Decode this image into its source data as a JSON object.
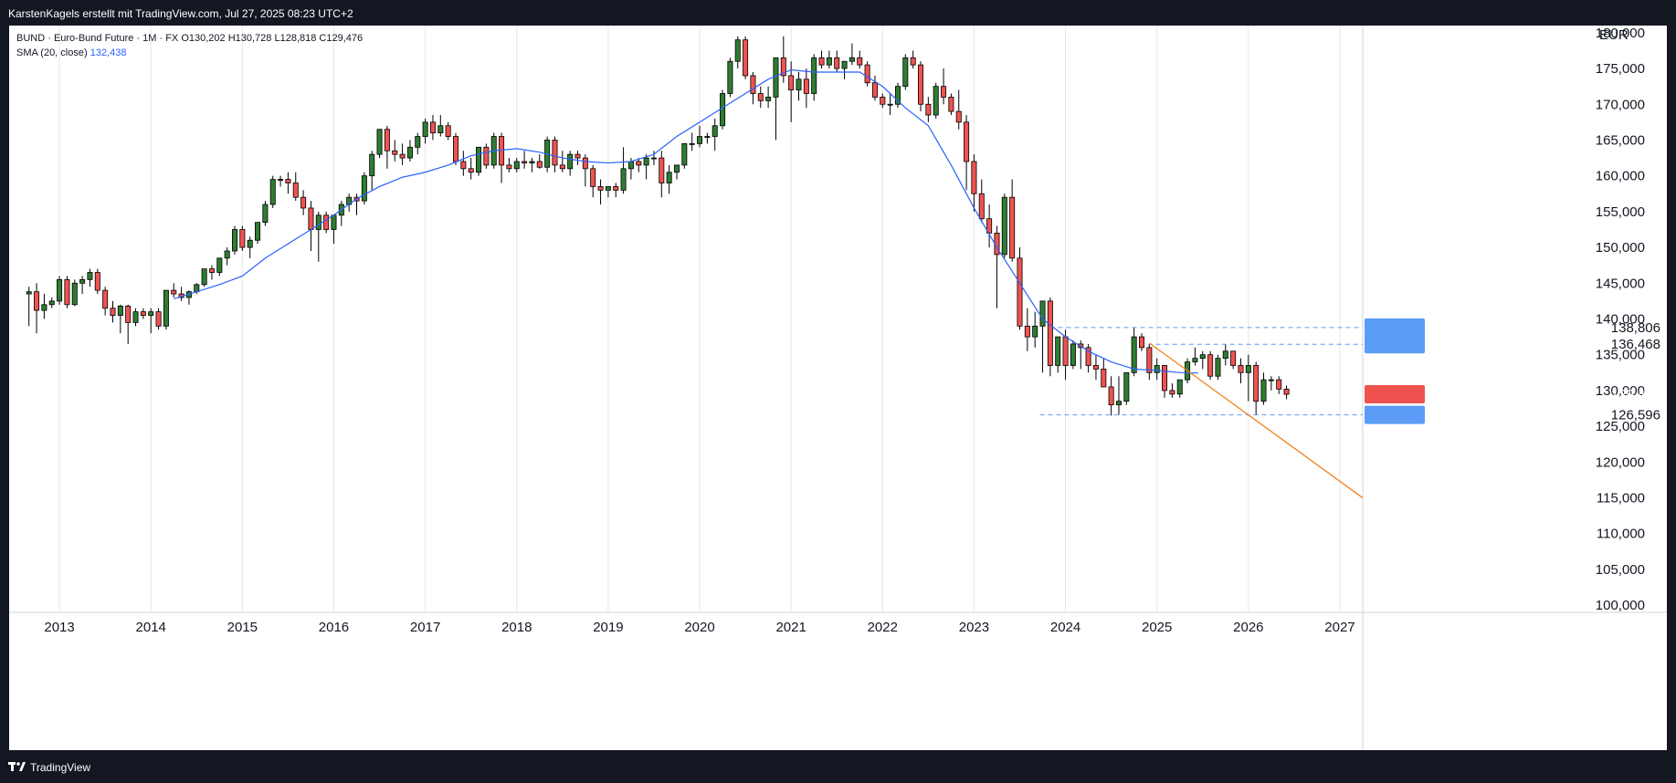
{
  "header": {
    "attribution": "KarstenKagels erstellt mit TradingView.com, Jul 27, 2025 08:23 UTC+2"
  },
  "legend": {
    "symbol_line": "BUND · Euro-Bund Future · 1M · FX  O130,202  H130,728  L128,818  C129,476",
    "sma_label": "SMA (20, close)",
    "sma_value": "132,438"
  },
  "footer": {
    "brand": "TradingView"
  },
  "chart_data": {
    "type": "candlestick",
    "currency": "EUR",
    "y_range": [
      99000,
      181000
    ],
    "y_ticks": [
      "100,000",
      "105,000",
      "110,000",
      "115,000",
      "120,000",
      "125,000",
      "130,000",
      "135,000",
      "140,000",
      "145,000",
      "150,000",
      "155,000",
      "160,000",
      "165,000",
      "170,000",
      "175,000",
      "180,000"
    ],
    "x_ticks": [
      "2013",
      "2014",
      "2015",
      "2016",
      "2017",
      "2018",
      "2019",
      "2020",
      "2021",
      "2022",
      "2023",
      "2024",
      "2025",
      "2026",
      "2027"
    ],
    "x_range_years": [
      2012.45,
      2027.25
    ],
    "candles_start": 2012.6667,
    "candles_ohlc": [
      [
        143.5,
        144.5,
        139.0,
        143.8
      ],
      [
        143.8,
        145.0,
        138.0,
        141.2
      ],
      [
        141.2,
        143.5,
        140.0,
        142.0
      ],
      [
        142.0,
        143.0,
        141.5,
        142.5
      ],
      [
        142.5,
        146.0,
        142.0,
        145.5
      ],
      [
        145.5,
        146.0,
        141.5,
        142.0
      ],
      [
        142.0,
        145.5,
        141.8,
        145.0
      ],
      [
        145.0,
        146.0,
        143.5,
        145.5
      ],
      [
        145.5,
        147.0,
        144.5,
        146.5
      ],
      [
        146.5,
        147.0,
        143.5,
        144.0
      ],
      [
        144.0,
        144.5,
        140.5,
        141.5
      ],
      [
        141.5,
        142.5,
        139.5,
        140.5
      ],
      [
        140.5,
        142.0,
        138.0,
        141.8
      ],
      [
        141.8,
        142.0,
        136.5,
        139.5
      ],
      [
        139.5,
        141.5,
        139.0,
        141.0
      ],
      [
        141.0,
        141.5,
        140.0,
        140.5
      ],
      [
        140.5,
        141.5,
        138.0,
        141.0
      ],
      [
        141.0,
        141.5,
        138.5,
        139.0
      ],
      [
        139.0,
        144.0,
        138.5,
        144.0
      ],
      [
        144.0,
        145.0,
        143.0,
        143.5
      ],
      [
        143.5,
        144.5,
        142.5,
        143.0
      ],
      [
        143.0,
        144.0,
        142.0,
        143.8
      ],
      [
        143.8,
        145.0,
        143.5,
        144.8
      ],
      [
        144.8,
        147.0,
        144.5,
        147.0
      ],
      [
        147.0,
        147.5,
        145.5,
        146.5
      ],
      [
        146.5,
        148.5,
        146.0,
        148.5
      ],
      [
        148.5,
        150.0,
        147.5,
        149.5
      ],
      [
        149.5,
        153.0,
        149.0,
        152.5
      ],
      [
        152.5,
        153.0,
        149.5,
        150.0
      ],
      [
        150.0,
        151.5,
        148.5,
        151.0
      ],
      [
        151.0,
        153.5,
        150.5,
        153.5
      ],
      [
        153.5,
        156.5,
        153.0,
        156.0
      ],
      [
        156.0,
        160.0,
        155.5,
        159.5
      ],
      [
        159.5,
        160.0,
        158.5,
        159.5
      ],
      [
        159.5,
        160.5,
        157.5,
        159.0
      ],
      [
        159.0,
        160.5,
        156.5,
        157.0
      ],
      [
        157.0,
        158.0,
        154.5,
        155.5
      ],
      [
        155.5,
        156.5,
        149.5,
        152.5
      ],
      [
        152.5,
        155.0,
        148.0,
        154.5
      ],
      [
        154.5,
        155.0,
        152.0,
        152.5
      ],
      [
        152.5,
        154.5,
        150.5,
        154.5
      ],
      [
        154.5,
        156.5,
        153.0,
        156.0
      ],
      [
        156.0,
        157.5,
        155.0,
        157.0
      ],
      [
        157.0,
        157.5,
        154.5,
        156.5
      ],
      [
        156.5,
        160.5,
        156.0,
        160.0
      ],
      [
        160.0,
        163.5,
        158.0,
        163.0
      ],
      [
        163.0,
        166.5,
        162.5,
        166.5
      ],
      [
        166.5,
        167.0,
        161.0,
        163.5
      ],
      [
        163.5,
        165.0,
        162.0,
        163.0
      ],
      [
        163.0,
        164.5,
        161.5,
        162.5
      ],
      [
        162.5,
        165.0,
        162.0,
        164.0
      ],
      [
        164.0,
        166.0,
        163.0,
        165.5
      ],
      [
        165.5,
        168.0,
        164.5,
        167.5
      ],
      [
        167.5,
        168.5,
        165.0,
        166.0
      ],
      [
        166.0,
        168.5,
        165.5,
        167.0
      ],
      [
        167.0,
        167.5,
        165.0,
        165.5
      ],
      [
        165.5,
        166.0,
        161.5,
        162.0
      ],
      [
        162.0,
        163.5,
        160.0,
        161.0
      ],
      [
        161.0,
        162.5,
        159.5,
        160.5
      ],
      [
        160.5,
        164.0,
        160.0,
        164.0
      ],
      [
        164.0,
        164.5,
        161.0,
        161.5
      ],
      [
        161.5,
        166.0,
        161.0,
        165.5
      ],
      [
        165.5,
        166.0,
        159.0,
        161.5
      ],
      [
        161.5,
        162.5,
        160.5,
        161.0
      ],
      [
        161.0,
        162.5,
        160.5,
        162.0
      ],
      [
        162.0,
        163.5,
        161.0,
        161.8
      ],
      [
        161.8,
        162.5,
        160.5,
        162.0
      ],
      [
        162.0,
        163.0,
        161.0,
        161.2
      ],
      [
        161.2,
        165.5,
        160.5,
        165.0
      ],
      [
        165.0,
        165.5,
        160.5,
        161.5
      ],
      [
        161.5,
        163.5,
        160.5,
        161.0
      ],
      [
        161.0,
        163.5,
        160.0,
        163.0
      ],
      [
        163.0,
        163.5,
        161.5,
        162.5
      ],
      [
        162.5,
        163.0,
        158.5,
        161.0
      ],
      [
        161.0,
        161.5,
        157.0,
        158.5
      ],
      [
        158.5,
        159.5,
        156.0,
        158.0
      ],
      [
        158.0,
        158.5,
        157.0,
        158.5
      ],
      [
        158.5,
        159.0,
        157.0,
        158.0
      ],
      [
        158.0,
        164.0,
        157.5,
        161.0
      ],
      [
        161.0,
        162.5,
        159.5,
        162.0
      ],
      [
        162.0,
        162.5,
        160.5,
        161.5
      ],
      [
        161.5,
        163.0,
        159.5,
        162.5
      ],
      [
        162.5,
        163.5,
        161.5,
        162.5
      ],
      [
        162.5,
        163.5,
        157.0,
        159.0
      ],
      [
        159.0,
        161.5,
        157.5,
        160.5
      ],
      [
        160.5,
        161.5,
        159.5,
        161.5
      ],
      [
        161.5,
        164.5,
        161.0,
        164.5
      ],
      [
        164.5,
        166.0,
        163.5,
        164.5
      ],
      [
        164.5,
        167.0,
        164.0,
        165.5
      ],
      [
        165.5,
        166.0,
        164.5,
        165.5
      ],
      [
        165.5,
        168.0,
        163.5,
        167.0
      ],
      [
        167.0,
        172.0,
        166.5,
        171.5
      ],
      [
        171.5,
        176.5,
        171.0,
        176.0
      ],
      [
        176.0,
        179.5,
        175.0,
        179.0
      ],
      [
        179.0,
        179.5,
        173.5,
        174.0
      ],
      [
        174.0,
        174.5,
        170.0,
        171.5
      ],
      [
        171.5,
        172.5,
        169.5,
        170.5
      ],
      [
        170.5,
        172.5,
        169.5,
        171.0
      ],
      [
        171.0,
        175.5,
        165.0,
        176.5
      ],
      [
        176.5,
        179.5,
        173.0,
        174.0
      ],
      [
        174.0,
        176.0,
        167.5,
        172.0
      ],
      [
        172.0,
        174.5,
        170.5,
        173.5
      ],
      [
        173.5,
        175.0,
        169.5,
        171.5
      ],
      [
        171.5,
        177.0,
        170.5,
        176.5
      ],
      [
        176.5,
        177.5,
        175.0,
        175.5
      ],
      [
        175.5,
        177.5,
        175.0,
        176.5
      ],
      [
        176.5,
        177.5,
        174.5,
        175.0
      ],
      [
        175.0,
        176.0,
        173.5,
        176.0
      ],
      [
        176.0,
        178.5,
        175.5,
        176.5
      ],
      [
        176.5,
        177.5,
        175.0,
        175.5
      ],
      [
        175.5,
        176.0,
        172.5,
        173.0
      ],
      [
        173.0,
        174.0,
        170.5,
        171.0
      ],
      [
        171.0,
        171.5,
        169.5,
        170.0
      ],
      [
        170.0,
        171.5,
        168.5,
        170.0
      ],
      [
        170.0,
        173.0,
        169.5,
        172.5
      ],
      [
        172.5,
        177.0,
        172.0,
        176.5
      ],
      [
        176.5,
        177.5,
        175.0,
        175.5
      ],
      [
        175.5,
        176.0,
        169.0,
        170.0
      ],
      [
        170.0,
        171.0,
        167.5,
        168.5
      ],
      [
        168.5,
        173.0,
        168.0,
        172.5
      ],
      [
        172.5,
        175.0,
        170.0,
        171.0
      ],
      [
        171.0,
        171.5,
        168.5,
        169.0
      ],
      [
        169.0,
        172.0,
        166.5,
        167.5
      ],
      [
        167.5,
        168.5,
        158.0,
        162.0
      ],
      [
        162.0,
        163.0,
        155.0,
        157.5
      ],
      [
        157.5,
        159.5,
        153.5,
        154.0
      ],
      [
        154.0,
        156.0,
        150.0,
        152.0
      ],
      [
        152.0,
        153.0,
        141.5,
        149.0
      ],
      [
        149.0,
        157.5,
        148.5,
        157.0
      ],
      [
        157.0,
        159.5,
        148.0,
        148.5
      ],
      [
        148.5,
        150.0,
        138.5,
        139.0
      ],
      [
        139.0,
        141.5,
        135.5,
        137.5
      ],
      [
        137.5,
        141.0,
        136.0,
        139.0
      ],
      [
        139.0,
        142.5,
        132.5,
        142.5
      ],
      [
        142.5,
        143.0,
        132.0,
        133.5
      ],
      [
        133.5,
        137.5,
        132.5,
        137.5
      ],
      [
        137.5,
        138.5,
        131.5,
        133.5
      ],
      [
        133.5,
        137.0,
        133.0,
        136.5
      ],
      [
        136.5,
        137.0,
        133.0,
        136.0
      ],
      [
        136.0,
        136.5,
        132.5,
        133.5
      ],
      [
        133.5,
        135.0,
        131.5,
        133.0
      ],
      [
        133.0,
        134.5,
        130.5,
        130.5
      ],
      [
        130.5,
        132.0,
        126.5,
        128.0
      ],
      [
        128.0,
        132.0,
        126.6,
        128.5
      ],
      [
        128.5,
        132.5,
        128.0,
        132.5
      ],
      [
        132.5,
        138.8,
        132.0,
        137.5
      ],
      [
        137.5,
        138.0,
        135.5,
        136.0
      ],
      [
        136.0,
        136.5,
        131.5,
        132.5
      ],
      [
        132.5,
        134.5,
        131.5,
        133.5
      ],
      [
        133.5,
        133.5,
        129.0,
        130.0
      ],
      [
        130.0,
        131.0,
        129.0,
        129.5
      ],
      [
        129.5,
        131.5,
        129.0,
        131.5
      ],
      [
        131.5,
        134.5,
        131.0,
        134.0
      ],
      [
        134.0,
        136.0,
        133.5,
        134.5
      ],
      [
        134.5,
        135.5,
        133.0,
        135.0
      ],
      [
        135.0,
        135.5,
        131.5,
        132.0
      ],
      [
        132.0,
        135.0,
        131.5,
        134.5
      ],
      [
        134.5,
        136.5,
        133.5,
        135.5
      ],
      [
        135.5,
        135.5,
        133.0,
        133.5
      ],
      [
        133.5,
        134.5,
        131.0,
        132.5
      ],
      [
        132.5,
        135.0,
        128.5,
        133.5
      ],
      [
        133.5,
        134.0,
        126.6,
        128.5
      ],
      [
        128.5,
        132.5,
        128.0,
        131.5
      ],
      [
        131.5,
        132.0,
        130.0,
        131.5
      ],
      [
        131.5,
        132.0,
        129.5,
        130.2
      ],
      [
        130.2,
        130.7,
        128.8,
        129.476
      ]
    ],
    "sma": {
      "name": "SMA (20, close)",
      "color": "#2962ff",
      "points": [
        [
          2014.25,
          142.8
        ],
        [
          2014.5,
          143.8
        ],
        [
          2014.75,
          144.8
        ],
        [
          2015.0,
          146.0
        ],
        [
          2015.25,
          148.5
        ],
        [
          2015.5,
          150.5
        ],
        [
          2015.75,
          152.5
        ],
        [
          2016.0,
          154.5
        ],
        [
          2016.25,
          156.8
        ],
        [
          2016.5,
          158.5
        ],
        [
          2016.75,
          159.8
        ],
        [
          2017.0,
          160.5
        ],
        [
          2017.25,
          161.5
        ],
        [
          2017.5,
          162.8
        ],
        [
          2017.75,
          163.5
        ],
        [
          2018.0,
          163.8
        ],
        [
          2018.25,
          163.3
        ],
        [
          2018.5,
          162.5
        ],
        [
          2018.75,
          162.0
        ],
        [
          2019.0,
          161.8
        ],
        [
          2019.25,
          162.0
        ],
        [
          2019.5,
          163.0
        ],
        [
          2019.75,
          165.5
        ],
        [
          2020.0,
          167.5
        ],
        [
          2020.25,
          169.5
        ],
        [
          2020.5,
          171.5
        ],
        [
          2020.75,
          173.5
        ],
        [
          2021.0,
          174.8
        ],
        [
          2021.25,
          174.5
        ],
        [
          2021.5,
          174.5
        ],
        [
          2021.75,
          174.5
        ],
        [
          2022.0,
          172.5
        ],
        [
          2022.25,
          169.5
        ],
        [
          2022.5,
          167.0
        ],
        [
          2022.75,
          161.5
        ],
        [
          2023.0,
          155.5
        ],
        [
          2023.25,
          150.0
        ],
        [
          2023.5,
          145.0
        ],
        [
          2023.75,
          140.0
        ],
        [
          2024.0,
          137.5
        ],
        [
          2024.25,
          135.5
        ],
        [
          2024.5,
          134.0
        ],
        [
          2024.75,
          133.0
        ],
        [
          2025.0,
          132.8
        ],
        [
          2025.25,
          132.5
        ],
        [
          2025.45,
          132.438
        ]
      ]
    },
    "hlines": [
      {
        "value": 138.806,
        "label": "138,806",
        "from": 2023.92
      },
      {
        "value": 136.468,
        "label": "136,468",
        "from": 2024.9
      },
      {
        "value": 126.596,
        "label": "126,596",
        "from": 2023.72
      }
    ],
    "trendline": {
      "color": "#f57f17",
      "from": [
        2024.92,
        136.6
      ],
      "to": [
        2027.25,
        115.0
      ]
    },
    "last_price": {
      "value": 129.476,
      "label": "129,476"
    },
    "colors": {
      "up": "#2e7d32",
      "down": "#ef5350",
      "grid": "#e6e7ea",
      "price_badge": "#ef5350",
      "level_badge": "#5b9cf6"
    }
  }
}
